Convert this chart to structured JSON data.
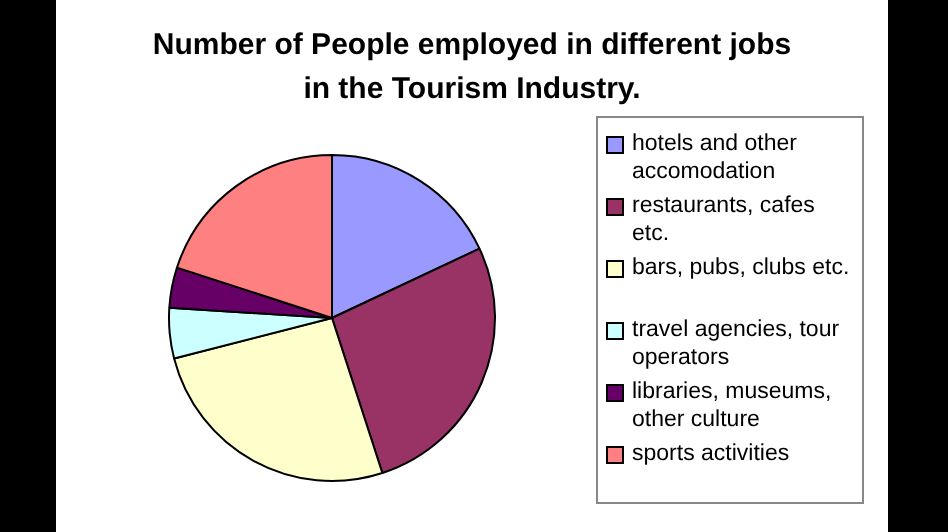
{
  "chart_data": {
    "type": "pie",
    "title": "Number of People employed in different jobs\nin the Tourism Industry.",
    "categories": [
      "hotels and other accomodation",
      "restaurants, cafes etc.",
      "bars, pubs, clubs etc.",
      "travel agencies, tour operators",
      "libraries, museums, other culture",
      "sports activities"
    ],
    "values": [
      18,
      27,
      26,
      5,
      4,
      20
    ],
    "colors": [
      "#9999ff",
      "#993366",
      "#ffffcc",
      "#ccffff",
      "#660066",
      "#ff8080"
    ],
    "legend": "right"
  }
}
